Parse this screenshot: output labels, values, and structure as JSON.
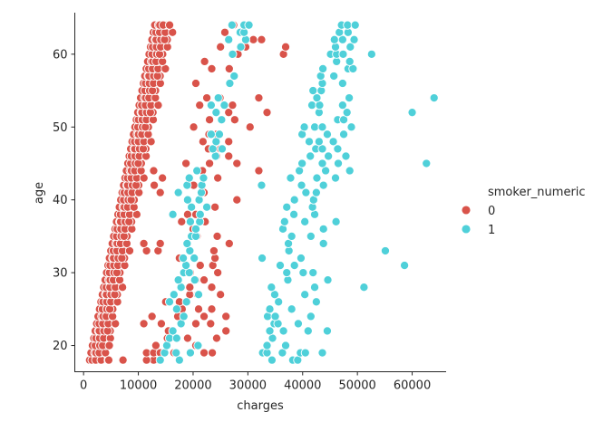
{
  "chart_data": {
    "type": "scatter",
    "title": "",
    "xlabel": "charges",
    "ylabel": "age",
    "xlim": [
      -1600,
      66200
    ],
    "ylim": [
      16.4,
      65.7
    ],
    "xticks": [
      0,
      10000,
      20000,
      30000,
      40000,
      50000,
      60000
    ],
    "xtick_labels": [
      "0",
      "10000",
      "20000",
      "30000",
      "40000",
      "50000",
      "60000"
    ],
    "yticks": [
      20,
      30,
      40,
      50,
      60
    ],
    "ytick_labels": [
      "20",
      "30",
      "40",
      "50",
      "60"
    ],
    "grid": false,
    "legend": {
      "title": "smoker_numeric",
      "placement": "center-right-outside",
      "entries": [
        {
          "label": "0",
          "color": "#d9534a"
        },
        {
          "label": "1",
          "color": "#4fd0d9"
        }
      ]
    },
    "series": [
      {
        "label": "0",
        "color": "#d9534a",
        "base_band": {
          "description": "dense band of non-smoker charges rising with age",
          "ages": [
            18,
            64
          ],
          "low_charges_at_min_age": 1100,
          "low_charges_at_max_age": 13000,
          "high_charges_at_min_age": 4500,
          "high_charges_at_max_age": 16500
        },
        "points": [
          [
            12800,
            18
          ],
          [
            11500,
            18
          ],
          [
            7200,
            18
          ],
          [
            4600,
            18
          ],
          [
            11500,
            19
          ],
          [
            12800,
            19
          ],
          [
            14000,
            19
          ],
          [
            16500,
            19
          ],
          [
            22000,
            19
          ],
          [
            23500,
            19
          ],
          [
            13200,
            20
          ],
          [
            4700,
            20
          ],
          [
            20500,
            20
          ],
          [
            15300,
            21
          ],
          [
            19000,
            21
          ],
          [
            24300,
            21
          ],
          [
            26000,
            22
          ],
          [
            15500,
            22
          ],
          [
            11000,
            23
          ],
          [
            14200,
            23
          ],
          [
            20500,
            23
          ],
          [
            23200,
            23
          ],
          [
            12500,
            24
          ],
          [
            17200,
            24
          ],
          [
            22000,
            24
          ],
          [
            26000,
            24
          ],
          [
            18000,
            25
          ],
          [
            21000,
            25
          ],
          [
            23400,
            25
          ],
          [
            15000,
            26
          ],
          [
            17500,
            26
          ],
          [
            19400,
            27
          ],
          [
            20800,
            27
          ],
          [
            25000,
            27
          ],
          [
            19400,
            28
          ],
          [
            23400,
            28
          ],
          [
            20500,
            29
          ],
          [
            22000,
            29
          ],
          [
            19500,
            30
          ],
          [
            24500,
            30
          ],
          [
            21300,
            31
          ],
          [
            23600,
            31
          ],
          [
            17500,
            32
          ],
          [
            24000,
            32
          ],
          [
            13600,
            33
          ],
          [
            11500,
            33
          ],
          [
            23800,
            33
          ],
          [
            11000,
            34
          ],
          [
            14000,
            34
          ],
          [
            26600,
            34
          ],
          [
            20700,
            35
          ],
          [
            24400,
            35
          ],
          [
            20000,
            36
          ],
          [
            17900,
            37
          ],
          [
            22200,
            37
          ],
          [
            20500,
            38
          ],
          [
            19000,
            38
          ],
          [
            24000,
            39
          ],
          [
            28000,
            40
          ],
          [
            14000,
            41
          ],
          [
            22000,
            41
          ],
          [
            12900,
            42
          ],
          [
            20100,
            42
          ],
          [
            14400,
            43
          ],
          [
            24500,
            43
          ],
          [
            12800,
            44
          ],
          [
            21700,
            44
          ],
          [
            32000,
            44
          ],
          [
            18700,
            45
          ],
          [
            23000,
            45
          ],
          [
            28000,
            45
          ],
          [
            24300,
            46
          ],
          [
            26500,
            46
          ],
          [
            22800,
            47
          ],
          [
            25000,
            47
          ],
          [
            21800,
            48
          ],
          [
            26500,
            48
          ],
          [
            22900,
            49
          ],
          [
            24300,
            49
          ],
          [
            20100,
            50
          ],
          [
            30400,
            50
          ],
          [
            23000,
            51
          ],
          [
            27600,
            51
          ],
          [
            26500,
            52
          ],
          [
            33500,
            52
          ],
          [
            21200,
            53
          ],
          [
            27200,
            53
          ],
          [
            22500,
            54
          ],
          [
            24900,
            54
          ],
          [
            32000,
            54
          ],
          [
            20500,
            56
          ],
          [
            23400,
            58
          ],
          [
            26600,
            58
          ],
          [
            22100,
            59
          ],
          [
            28200,
            60
          ],
          [
            36500,
            60
          ],
          [
            29600,
            61
          ],
          [
            36900,
            61
          ],
          [
            25000,
            61
          ],
          [
            31000,
            62
          ],
          [
            32500,
            62
          ],
          [
            28600,
            63
          ],
          [
            25800,
            63
          ],
          [
            27400,
            64
          ]
        ]
      },
      {
        "label": "1",
        "color": "#4fd0d9",
        "points": [
          [
            14000,
            18
          ],
          [
            17500,
            18
          ],
          [
            34400,
            18
          ],
          [
            38200,
            18
          ],
          [
            39100,
            18
          ],
          [
            14800,
            19
          ],
          [
            16900,
            19
          ],
          [
            19500,
            19
          ],
          [
            32700,
            19
          ],
          [
            33500,
            19
          ],
          [
            36300,
            19
          ],
          [
            39600,
            19
          ],
          [
            40500,
            19
          ],
          [
            43600,
            19
          ],
          [
            15200,
            20
          ],
          [
            20900,
            20
          ],
          [
            33500,
            20
          ],
          [
            36900,
            20
          ],
          [
            15700,
            21
          ],
          [
            17000,
            21
          ],
          [
            34500,
            21
          ],
          [
            16300,
            22
          ],
          [
            34000,
            22
          ],
          [
            36500,
            22
          ],
          [
            41000,
            22
          ],
          [
            44500,
            22
          ],
          [
            17800,
            23
          ],
          [
            34800,
            23
          ],
          [
            39200,
            23
          ],
          [
            35500,
            23
          ],
          [
            18300,
            24
          ],
          [
            33600,
            24
          ],
          [
            35000,
            24
          ],
          [
            41500,
            24
          ],
          [
            17000,
            25
          ],
          [
            34000,
            25
          ],
          [
            38000,
            25
          ],
          [
            15700,
            26
          ],
          [
            18800,
            26
          ],
          [
            35600,
            26
          ],
          [
            42500,
            26
          ],
          [
            16500,
            27
          ],
          [
            21000,
            27
          ],
          [
            34900,
            27
          ],
          [
            40400,
            27
          ],
          [
            17800,
            28
          ],
          [
            34300,
            28
          ],
          [
            42200,
            28
          ],
          [
            51200,
            28
          ],
          [
            17300,
            29
          ],
          [
            20300,
            29
          ],
          [
            37300,
            29
          ],
          [
            44600,
            29
          ],
          [
            18300,
            30
          ],
          [
            19300,
            30
          ],
          [
            37100,
            30
          ],
          [
            40100,
            30
          ],
          [
            41900,
            30
          ],
          [
            18700,
            31
          ],
          [
            35900,
            31
          ],
          [
            38500,
            31
          ],
          [
            58600,
            31
          ],
          [
            18200,
            32
          ],
          [
            20200,
            32
          ],
          [
            32600,
            32
          ],
          [
            39700,
            32
          ],
          [
            19400,
            33
          ],
          [
            37500,
            33
          ],
          [
            55100,
            33
          ],
          [
            18900,
            34
          ],
          [
            37400,
            34
          ],
          [
            43800,
            34
          ],
          [
            19700,
            35
          ],
          [
            20500,
            35
          ],
          [
            38000,
            35
          ],
          [
            41500,
            35
          ],
          [
            20500,
            36
          ],
          [
            36400,
            36
          ],
          [
            43800,
            36
          ],
          [
            19500,
            37
          ],
          [
            21200,
            37
          ],
          [
            36700,
            37
          ],
          [
            40400,
            37
          ],
          [
            46100,
            37
          ],
          [
            16300,
            38
          ],
          [
            21300,
            38
          ],
          [
            38400,
            38
          ],
          [
            42200,
            38
          ],
          [
            19700,
            39
          ],
          [
            22500,
            39
          ],
          [
            37100,
            39
          ],
          [
            41800,
            39
          ],
          [
            19000,
            40
          ],
          [
            21100,
            40
          ],
          [
            38500,
            40
          ],
          [
            42000,
            40
          ],
          [
            17300,
            41
          ],
          [
            21500,
            41
          ],
          [
            40600,
            41
          ],
          [
            42500,
            41
          ],
          [
            18900,
            42
          ],
          [
            21600,
            42
          ],
          [
            32500,
            42
          ],
          [
            39800,
            42
          ],
          [
            43800,
            42
          ],
          [
            19300,
            43
          ],
          [
            21900,
            43
          ],
          [
            37800,
            43
          ],
          [
            42600,
            43
          ],
          [
            46000,
            43
          ],
          [
            20700,
            44
          ],
          [
            39400,
            44
          ],
          [
            44200,
            44
          ],
          [
            48600,
            44
          ],
          [
            39900,
            45
          ],
          [
            43600,
            45
          ],
          [
            46500,
            45
          ],
          [
            62600,
            45
          ],
          [
            24100,
            46
          ],
          [
            41400,
            46
          ],
          [
            44700,
            46
          ],
          [
            47900,
            46
          ],
          [
            23600,
            47
          ],
          [
            25300,
            47
          ],
          [
            42400,
            47
          ],
          [
            43600,
            47
          ],
          [
            46400,
            47
          ],
          [
            24200,
            48
          ],
          [
            41200,
            48
          ],
          [
            43000,
            48
          ],
          [
            45600,
            48
          ],
          [
            23300,
            49
          ],
          [
            24800,
            49
          ],
          [
            39900,
            49
          ],
          [
            44500,
            49
          ],
          [
            47500,
            49
          ],
          [
            40300,
            50
          ],
          [
            42200,
            50
          ],
          [
            43600,
            50
          ],
          [
            48900,
            50
          ],
          [
            25200,
            51
          ],
          [
            46400,
            51
          ],
          [
            47500,
            51
          ],
          [
            24200,
            52
          ],
          [
            43000,
            52
          ],
          [
            48100,
            52
          ],
          [
            60000,
            52
          ],
          [
            23300,
            53
          ],
          [
            25700,
            53
          ],
          [
            41700,
            53
          ],
          [
            43100,
            53
          ],
          [
            47300,
            53
          ],
          [
            24600,
            54
          ],
          [
            42600,
            54
          ],
          [
            48500,
            54
          ],
          [
            64000,
            54
          ],
          [
            41900,
            55
          ],
          [
            43400,
            55
          ],
          [
            26700,
            56
          ],
          [
            43600,
            56
          ],
          [
            47300,
            56
          ],
          [
            27500,
            57
          ],
          [
            43300,
            57
          ],
          [
            45700,
            57
          ],
          [
            43700,
            58
          ],
          [
            48300,
            58
          ],
          [
            49200,
            58
          ],
          [
            46200,
            59
          ],
          [
            48600,
            59
          ],
          [
            27200,
            60
          ],
          [
            45100,
            60
          ],
          [
            46200,
            60
          ],
          [
            47400,
            60
          ],
          [
            52600,
            60
          ],
          [
            28700,
            61
          ],
          [
            46000,
            61
          ],
          [
            48700,
            61
          ],
          [
            26500,
            62
          ],
          [
            29600,
            62
          ],
          [
            45800,
            62
          ],
          [
            47300,
            62
          ],
          [
            49400,
            62
          ],
          [
            28600,
            63
          ],
          [
            29300,
            63
          ],
          [
            46700,
            63
          ],
          [
            48300,
            63
          ],
          [
            27100,
            64
          ],
          [
            29300,
            64
          ],
          [
            30200,
            64
          ],
          [
            47100,
            64
          ],
          [
            48200,
            64
          ],
          [
            49600,
            64
          ]
        ]
      }
    ]
  }
}
